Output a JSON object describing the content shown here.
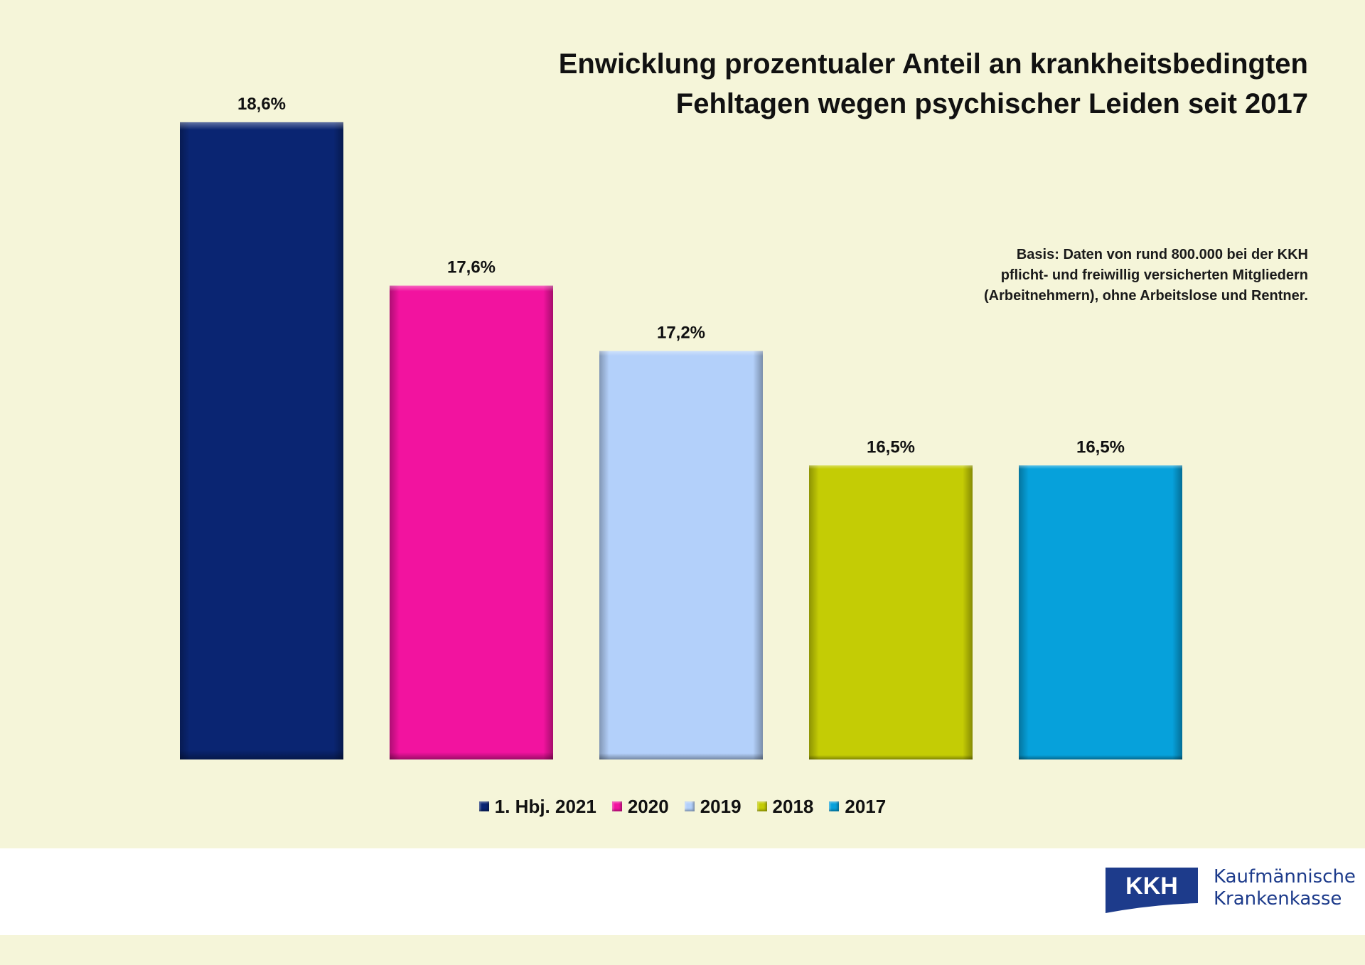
{
  "chart_data": {
    "type": "bar",
    "title": "Enwicklung prozentualer Anteil an krankheitsbedingten Fehltagen wegen psychischer Leiden seit 2017",
    "title_lines": [
      "Enwicklung prozentualer Anteil an krankheitsbedingten",
      "Fehltagen wegen psychischer Leiden seit 2017"
    ],
    "categories": [
      "1. Hbj. 2021",
      "2020",
      "2019",
      "2018",
      "2017"
    ],
    "values": [
      18.6,
      17.6,
      17.2,
      16.5,
      16.5
    ],
    "data_labels": [
      "18,6%",
      "17,6%",
      "17,2%",
      "16,5%",
      "16,5%"
    ],
    "colors": [
      "#0a2572",
      "#f2139f",
      "#b3d0fa",
      "#c4cc05",
      "#06a1db"
    ],
    "ylim": [
      14.7,
      19.0
    ],
    "xlabel": "",
    "ylabel": "",
    "grid": false,
    "legend_position": "bottom"
  },
  "note": {
    "lines": [
      "Basis: Daten von rund 800.000 bei der KKH",
      "pflicht- und freiwillig versicherten Mitgliedern",
      "(Arbeitnehmern), ohne Arbeitslose und Rentner."
    ]
  },
  "logo": {
    "mark": "KKH",
    "name_line1": "Kaufmännische",
    "name_line2": "Krankenkasse",
    "color": "#1d3b8b"
  }
}
